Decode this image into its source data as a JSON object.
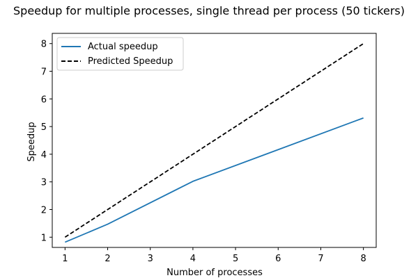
{
  "chart_data": {
    "type": "line",
    "title": "Speedup for multiple processes, single thread per process (50 tickers)",
    "xlabel": "Number of processes",
    "ylabel": "Speedup",
    "xlim": [
      0.7,
      8.3
    ],
    "ylim": [
      0.63,
      8.37
    ],
    "xticks": [
      1,
      2,
      3,
      4,
      5,
      6,
      7,
      8
    ],
    "yticks": [
      1,
      2,
      3,
      4,
      5,
      6,
      7,
      8
    ],
    "grid": false,
    "legend_position": "top-left",
    "series": [
      {
        "name": "Actual speedup",
        "color": "#1f77b4",
        "style": "solid",
        "x": [
          1,
          2,
          4,
          8
        ],
        "y": [
          0.82,
          1.47,
          3.02,
          5.31
        ]
      },
      {
        "name": "Predicted Speedup",
        "color": "#000000",
        "style": "dashed",
        "x": [
          1,
          2,
          3,
          4,
          5,
          6,
          7,
          8
        ],
        "y": [
          1,
          2,
          3,
          4,
          5,
          6,
          7,
          8
        ]
      }
    ]
  }
}
